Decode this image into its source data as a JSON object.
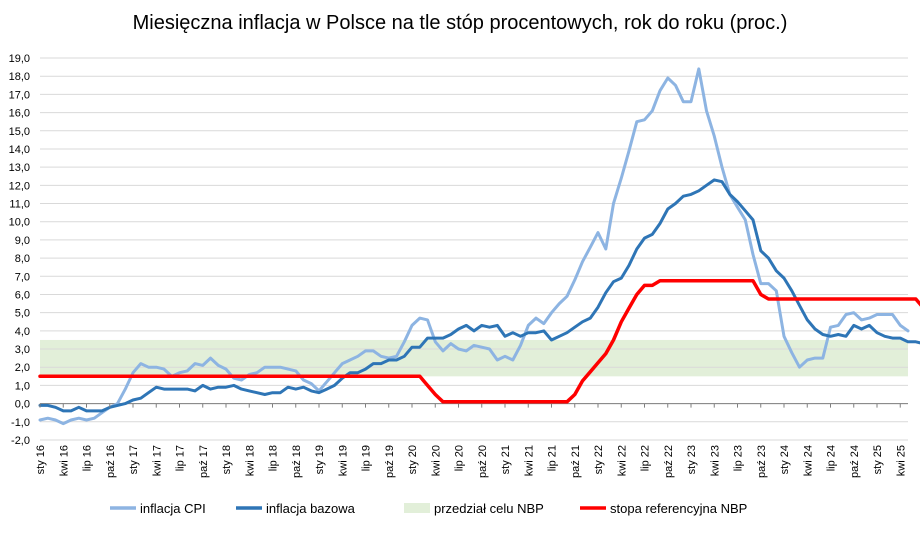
{
  "chart_data": {
    "type": "line",
    "title": "Miesięczna inflacja w Polsce na tle stóp procentowych, rok do roku (proc.)",
    "ylim": [
      -2,
      19
    ],
    "ytick_step": 1,
    "ytick_labels": [
      "-2,0",
      "-1,0",
      "0,0",
      "1,0",
      "2,0",
      "3,0",
      "4,0",
      "5,0",
      "6,0",
      "7,0",
      "8,0",
      "9,0",
      "10,0",
      "11,0",
      "12,0",
      "13,0",
      "14,0",
      "15,0",
      "16,0",
      "17,0",
      "18,0",
      "19,0"
    ],
    "x_start": "sty 16",
    "x_tick_labels": [
      "sty 16",
      "kwi 16",
      "lip 16",
      "paź 16",
      "sty 17",
      "kwi 17",
      "lip 17",
      "paź 17",
      "sty 18",
      "kwi 18",
      "lip 18",
      "paź 18",
      "sty 19",
      "kwi 19",
      "lip 19",
      "paź 19",
      "sty 20",
      "kwi 20",
      "lip 20",
      "paź 20",
      "sty 21",
      "kwi 21",
      "lip 21",
      "paź 21",
      "sty 22",
      "kwi 22",
      "lip 22",
      "paź 22",
      "sty 23",
      "kwi 23",
      "lip 23",
      "paź 23",
      "sty 24",
      "kwi 24",
      "lip 24",
      "paź 24",
      "sty 25",
      "kwi 25"
    ],
    "grid": true,
    "legend_position": "bottom",
    "target_band": {
      "name": "przedział celu NBP",
      "low": 1.5,
      "high": 3.5,
      "color": "#e2efd9"
    },
    "series": [
      {
        "name": "inflacja CPI",
        "color": "#8db4e2",
        "values": [
          -0.9,
          -0.8,
          -0.9,
          -1.1,
          -0.9,
          -0.8,
          -0.9,
          -0.8,
          -0.5,
          -0.2,
          0.0,
          0.8,
          1.7,
          2.2,
          2.0,
          2.0,
          1.9,
          1.5,
          1.7,
          1.8,
          2.2,
          2.1,
          2.5,
          2.1,
          1.9,
          1.4,
          1.3,
          1.6,
          1.7,
          2.0,
          2.0,
          2.0,
          1.9,
          1.8,
          1.3,
          1.1,
          0.7,
          1.2,
          1.7,
          2.2,
          2.4,
          2.6,
          2.9,
          2.9,
          2.6,
          2.5,
          2.6,
          3.4,
          4.3,
          4.7,
          4.6,
          3.4,
          2.9,
          3.3,
          3.0,
          2.9,
          3.2,
          3.1,
          3.0,
          2.4,
          2.6,
          2.4,
          3.2,
          4.3,
          4.7,
          4.4,
          5.0,
          5.5,
          5.9,
          6.8,
          7.8,
          8.6,
          9.4,
          8.5,
          11.0,
          12.4,
          13.9,
          15.5,
          15.6,
          16.1,
          17.2,
          17.9,
          17.5,
          16.6,
          16.6,
          18.4,
          16.1,
          14.7,
          13.0,
          11.5,
          10.8,
          10.1,
          8.2,
          6.6,
          6.6,
          6.2,
          3.7,
          2.8,
          2.0,
          2.4,
          2.5,
          2.5,
          4.2,
          4.3,
          4.9,
          5.0,
          4.6,
          4.7,
          4.9,
          4.9,
          4.9,
          4.3,
          4.0
        ]
      },
      {
        "name": "inflacja bazowa",
        "color": "#2e75b6",
        "values": [
          -0.1,
          -0.1,
          -0.2,
          -0.4,
          -0.4,
          -0.2,
          -0.4,
          -0.4,
          -0.4,
          -0.2,
          -0.1,
          0.0,
          0.2,
          0.3,
          0.6,
          0.9,
          0.8,
          0.8,
          0.8,
          0.8,
          0.7,
          1.0,
          0.8,
          0.9,
          0.9,
          1.0,
          0.8,
          0.7,
          0.6,
          0.5,
          0.6,
          0.6,
          0.9,
          0.8,
          0.9,
          0.7,
          0.6,
          0.8,
          1.0,
          1.4,
          1.7,
          1.7,
          1.9,
          2.2,
          2.2,
          2.4,
          2.4,
          2.6,
          3.1,
          3.1,
          3.6,
          3.6,
          3.6,
          3.8,
          4.1,
          4.3,
          4.0,
          4.3,
          4.2,
          4.3,
          3.7,
          3.9,
          3.7,
          3.9,
          3.9,
          4.0,
          3.5,
          3.7,
          3.9,
          4.2,
          4.5,
          4.7,
          5.3,
          6.1,
          6.7,
          6.9,
          7.6,
          8.5,
          9.1,
          9.3,
          9.9,
          10.7,
          11.0,
          11.4,
          11.5,
          11.7,
          12.0,
          12.3,
          12.2,
          11.5,
          11.1,
          10.6,
          10.1,
          8.4,
          8.0,
          7.3,
          6.9,
          6.2,
          5.4,
          4.6,
          4.1,
          3.8,
          3.7,
          3.8,
          3.7,
          4.3,
          4.1,
          4.3,
          3.9,
          3.7,
          3.6,
          3.6,
          3.4,
          3.4,
          3.3
        ]
      },
      {
        "name": "stopa referencyjna NBP",
        "color": "#ff0000",
        "values": [
          1.5,
          1.5,
          1.5,
          1.5,
          1.5,
          1.5,
          1.5,
          1.5,
          1.5,
          1.5,
          1.5,
          1.5,
          1.5,
          1.5,
          1.5,
          1.5,
          1.5,
          1.5,
          1.5,
          1.5,
          1.5,
          1.5,
          1.5,
          1.5,
          1.5,
          1.5,
          1.5,
          1.5,
          1.5,
          1.5,
          1.5,
          1.5,
          1.5,
          1.5,
          1.5,
          1.5,
          1.5,
          1.5,
          1.5,
          1.5,
          1.5,
          1.5,
          1.5,
          1.5,
          1.5,
          1.5,
          1.5,
          1.5,
          1.5,
          1.5,
          1.0,
          0.5,
          0.1,
          0.1,
          0.1,
          0.1,
          0.1,
          0.1,
          0.1,
          0.1,
          0.1,
          0.1,
          0.1,
          0.1,
          0.1,
          0.1,
          0.1,
          0.1,
          0.1,
          0.5,
          1.25,
          1.75,
          2.25,
          2.75,
          3.5,
          4.5,
          5.25,
          6.0,
          6.5,
          6.5,
          6.75,
          6.75,
          6.75,
          6.75,
          6.75,
          6.75,
          6.75,
          6.75,
          6.75,
          6.75,
          6.75,
          6.75,
          6.75,
          6.0,
          5.75,
          5.75,
          5.75,
          5.75,
          5.75,
          5.75,
          5.75,
          5.75,
          5.75,
          5.75,
          5.75,
          5.75,
          5.75,
          5.75,
          5.75,
          5.75,
          5.75,
          5.75,
          5.75,
          5.75,
          5.25
        ]
      }
    ]
  }
}
